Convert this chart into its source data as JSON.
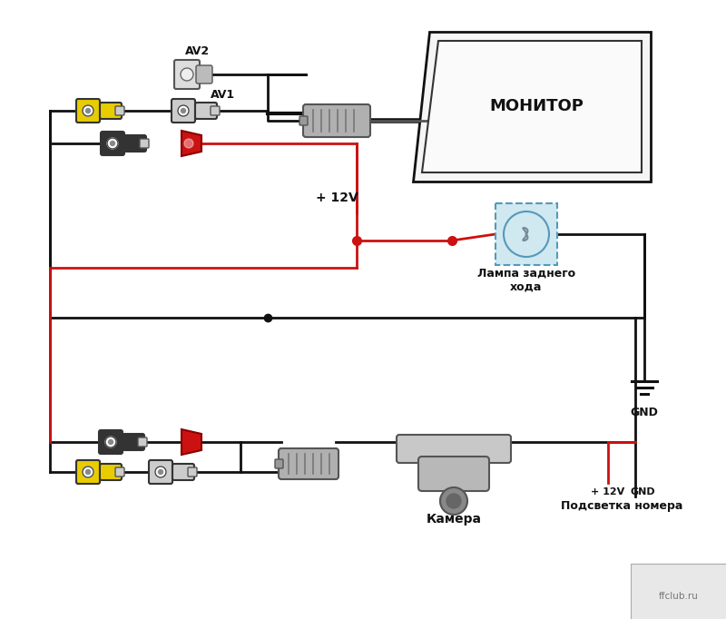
{
  "bg_color": "#ffffff",
  "fig_width": 8.0,
  "fig_height": 6.82,
  "monitor_label": "МОНИТОР",
  "lamp_label": "Лампа заднего\nхода",
  "gnd_label": "GND",
  "plus12v_label": "+ 12V",
  "av2_label": "AV2",
  "av1_label": "AV1",
  "camera_label": "Камера",
  "podsvletka_label": "Подсветка номера",
  "ffclub_label": "ffclub.ru",
  "yellow_color": "#e8cc00",
  "red_color": "#cc1111",
  "black_color": "#111111",
  "dark_gray": "#444444",
  "med_gray": "#888888",
  "light_gray": "#cccccc",
  "wire_black": "#111111",
  "wire_red": "#cc1111",
  "lamp_fill": "#d0e8f0",
  "lamp_border": "#5599bb",
  "lw": 2.0
}
